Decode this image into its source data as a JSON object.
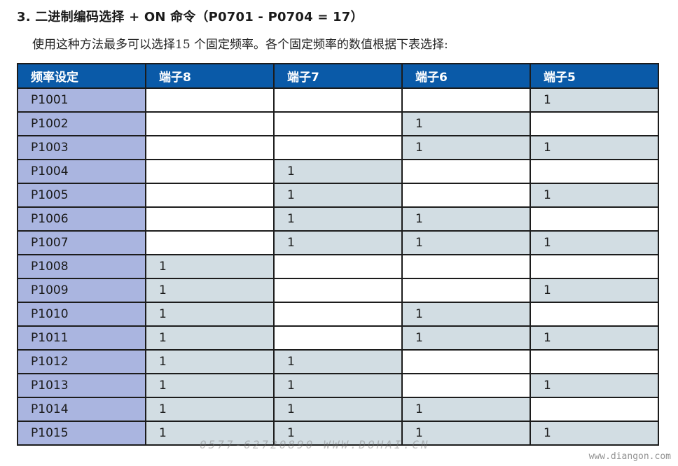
{
  "heading": "3. 二进制编码选择 + ON 命令（P0701 - P0704 = 17）",
  "intro": "使用这种方法最多可以选择15 个固定频率。各个固定频率的数值根据下表选择:",
  "table": {
    "headers": [
      "频率设定",
      "端子8",
      "端子7",
      "端子6",
      "端子5"
    ],
    "rows": [
      [
        "P1001",
        "",
        "",
        "",
        "1"
      ],
      [
        "P1002",
        "",
        "",
        "1",
        ""
      ],
      [
        "P1003",
        "",
        "",
        "1",
        "1"
      ],
      [
        "P1004",
        "",
        "1",
        "",
        ""
      ],
      [
        "P1005",
        "",
        "1",
        "",
        "1"
      ],
      [
        "P1006",
        "",
        "1",
        "1",
        ""
      ],
      [
        "P1007",
        "",
        "1",
        "1",
        "1"
      ],
      [
        "P1008",
        "1",
        "",
        "",
        ""
      ],
      [
        "P1009",
        "1",
        "",
        "",
        "1"
      ],
      [
        "P1010",
        "1",
        "",
        "1",
        ""
      ],
      [
        "P1011",
        "1",
        "",
        "1",
        "1"
      ],
      [
        "P1012",
        "1",
        "1",
        "",
        ""
      ],
      [
        "P1013",
        "1",
        "1",
        "",
        "1"
      ],
      [
        "P1014",
        "1",
        "1",
        "1",
        ""
      ],
      [
        "P1015",
        "1",
        "1",
        "1",
        "1"
      ]
    ]
  },
  "watermarks": {
    "center": "0577-62720890   WWW.DOHAI.CN",
    "corner": "www.diangon.com"
  },
  "colors": {
    "header_bg": "#0a5aa8",
    "param_bg": "#aab5e0",
    "on_bg": "#d2dde3",
    "off_bg": "#ffffff"
  }
}
